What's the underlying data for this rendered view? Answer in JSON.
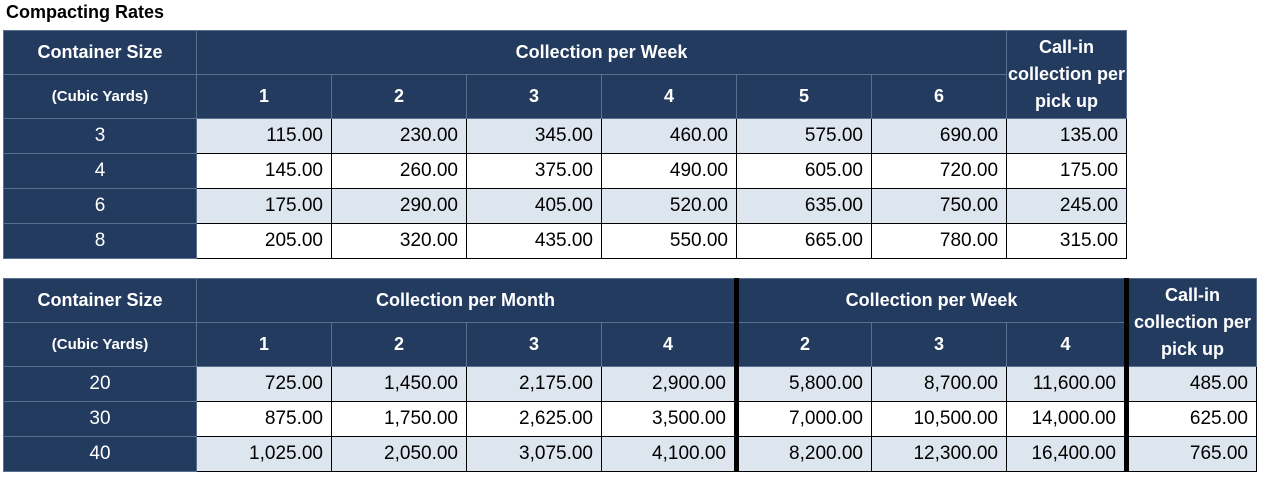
{
  "title": "Compacting Rates",
  "table1": {
    "container_header": "Container Size",
    "container_sub": "(Cubic Yards)",
    "group_header": "Collection per Week",
    "callin_header": "Call-in collection per pick up",
    "columns": [
      "1",
      "2",
      "3",
      "4",
      "5",
      "6"
    ],
    "rows": [
      {
        "size": "3",
        "values": [
          "115.00",
          "230.00",
          "345.00",
          "460.00",
          "575.00",
          "690.00"
        ],
        "callin": "135.00"
      },
      {
        "size": "4",
        "values": [
          "145.00",
          "260.00",
          "375.00",
          "490.00",
          "605.00",
          "720.00"
        ],
        "callin": "175.00"
      },
      {
        "size": "6",
        "values": [
          "175.00",
          "290.00",
          "405.00",
          "520.00",
          "635.00",
          "750.00"
        ],
        "callin": "245.00"
      },
      {
        "size": "8",
        "values": [
          "205.00",
          "320.00",
          "435.00",
          "550.00",
          "665.00",
          "780.00"
        ],
        "callin": "315.00"
      }
    ]
  },
  "table2": {
    "container_header": "Container Size",
    "container_sub": "(Cubic Yards)",
    "month_header": "Collection per Month",
    "week_header": "Collection per Week",
    "callin_header": "Call-in collection per pick up",
    "month_columns": [
      "1",
      "2",
      "3",
      "4"
    ],
    "week_columns": [
      "2",
      "3",
      "4"
    ],
    "rows": [
      {
        "size": "20",
        "month": [
          "725.00",
          "1,450.00",
          "2,175.00",
          "2,900.00"
        ],
        "week": [
          "5,800.00",
          "8,700.00",
          "11,600.00"
        ],
        "callin": "485.00"
      },
      {
        "size": "30",
        "month": [
          "875.00",
          "1,750.00",
          "2,625.00",
          "3,500.00"
        ],
        "week": [
          "7,000.00",
          "10,500.00",
          "14,000.00"
        ],
        "callin": "625.00"
      },
      {
        "size": "40",
        "month": [
          "1,025.00",
          "2,050.00",
          "3,075.00",
          "4,100.00"
        ],
        "week": [
          "8,200.00",
          "12,300.00",
          "16,400.00"
        ],
        "callin": "765.00"
      }
    ]
  }
}
